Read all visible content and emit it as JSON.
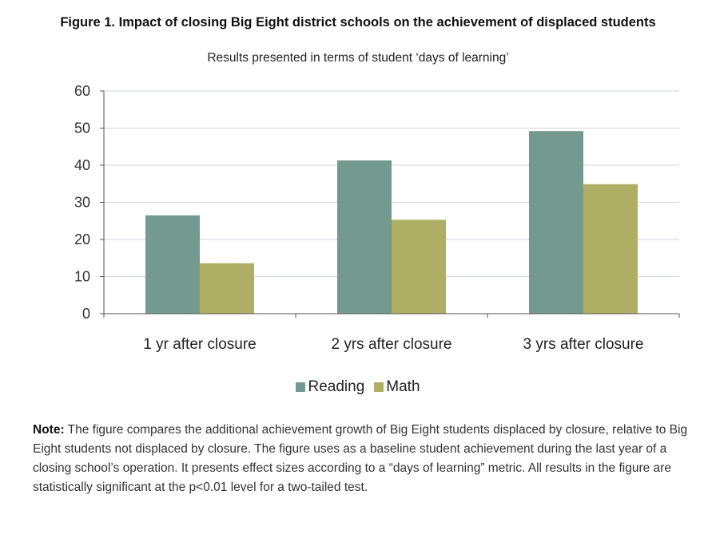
{
  "colors": {
    "reading": "#74998f",
    "math": "#aeaf65",
    "grid": "#cfd6de",
    "axis": "#555555"
  },
  "chart_data": {
    "type": "bar",
    "title": "Figure 1. Impact of closing Big Eight district schools on the achievement of displaced students",
    "subtitle": "Results presented in terms of student ‘days of learning’",
    "categories": [
      "1 yr after closure",
      "2 yrs after closure",
      "3 yrs after closure"
    ],
    "series": [
      {
        "name": "Reading",
        "values": [
          26.5,
          41.3,
          49.2
        ]
      },
      {
        "name": "Math",
        "values": [
          13.6,
          25.3,
          34.9
        ]
      }
    ],
    "yticks": [
      0,
      10,
      20,
      30,
      40,
      50,
      60
    ],
    "ylim": [
      0,
      60
    ],
    "xlabel": "",
    "ylabel": "",
    "grid": true,
    "legend_position": "bottom-center"
  },
  "note": {
    "label": "Note:",
    "text": " The figure compares the additional achievement growth of Big Eight students displaced by closure, relative to Big Eight students not displaced by closure. The figure uses as a baseline student achievement during the last year of a closing school’s operation. It presents effect sizes according to a “days of learning” metric. All results in the figure are statistically significant at the p<0.01 level for a two-tailed test."
  }
}
